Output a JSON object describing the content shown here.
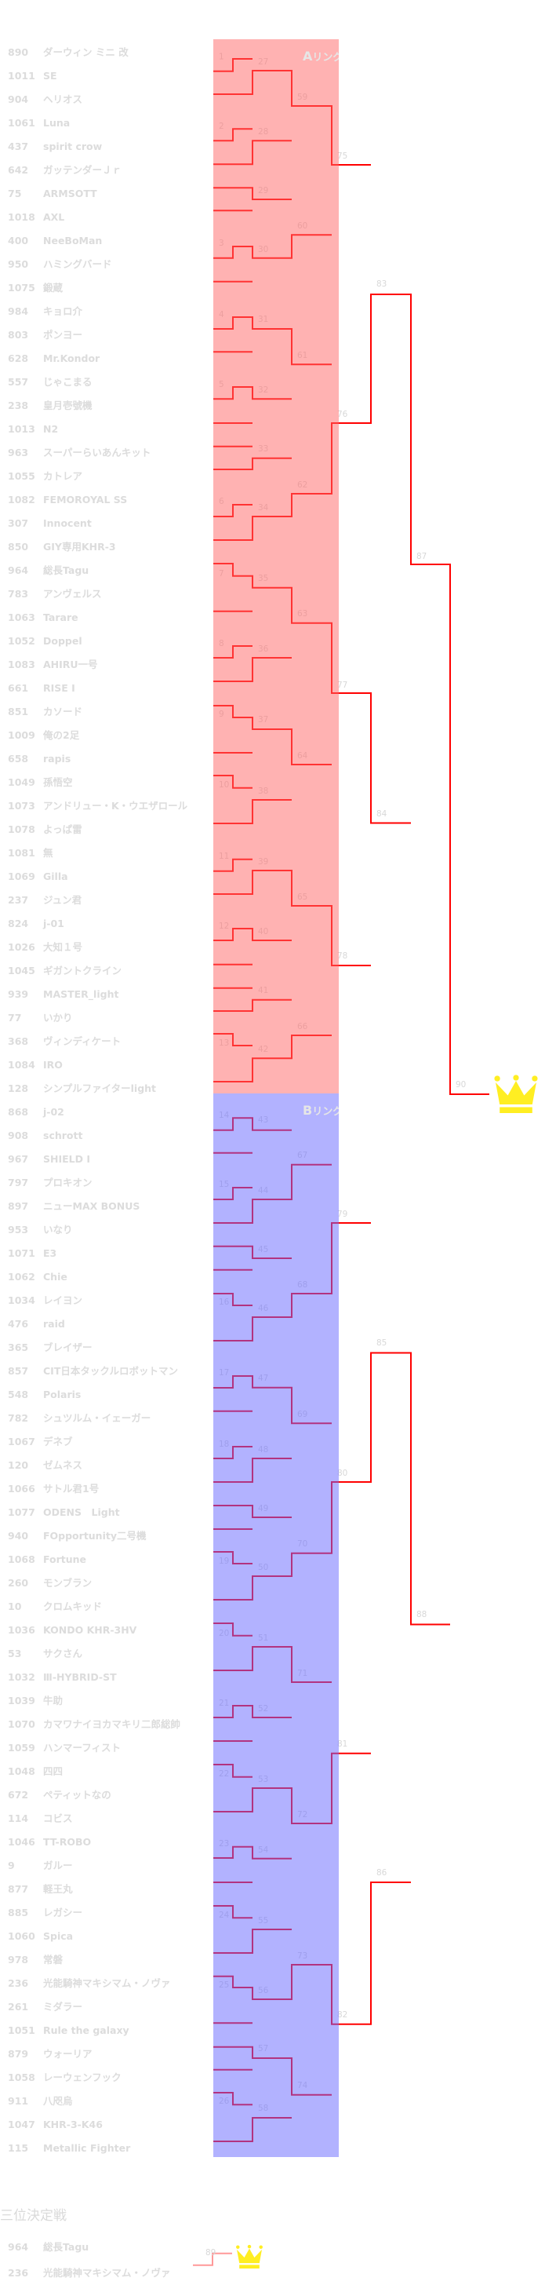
{
  "rings": [
    {
      "label_letter": "A",
      "label_rest": "リング",
      "entrants": [
        {
          "no": "890",
          "name": "ダーウィン ミニ 改"
        },
        {
          "no": "1011",
          "name": "SE"
        },
        {
          "no": "904",
          "name": "ヘリオス"
        },
        {
          "no": "1061",
          "name": "Luna"
        },
        {
          "no": "437",
          "name": "spirit crow"
        },
        {
          "no": "642",
          "name": "ガッテンダーＪｒ"
        },
        {
          "no": "75",
          "name": "ARMSOTT"
        },
        {
          "no": "1018",
          "name": "AXL"
        },
        {
          "no": "400",
          "name": "NeeBoMan"
        },
        {
          "no": "950",
          "name": "ハミングバード"
        },
        {
          "no": "1075",
          "name": "鍛蔵"
        },
        {
          "no": "984",
          "name": "キョロ介"
        },
        {
          "no": "803",
          "name": "ポンヨー"
        },
        {
          "no": "628",
          "name": "Mr.Kondor"
        },
        {
          "no": "557",
          "name": "じゃこまる"
        },
        {
          "no": "238",
          "name": "皇月壱號機"
        },
        {
          "no": "1013",
          "name": "N2"
        },
        {
          "no": "963",
          "name": "スーパーらいあんキット"
        },
        {
          "no": "1055",
          "name": "カトレア"
        },
        {
          "no": "1082",
          "name": "FEMOROYAL SS"
        },
        {
          "no": "307",
          "name": "Innocent"
        },
        {
          "no": "850",
          "name": "GIY専用KHR-3"
        },
        {
          "no": "964",
          "name": "総長Tagu"
        },
        {
          "no": "783",
          "name": "アンヴェルス"
        },
        {
          "no": "1063",
          "name": "Tarare"
        },
        {
          "no": "1052",
          "name": "Doppel"
        },
        {
          "no": "1083",
          "name": "AHIRU一号"
        },
        {
          "no": "661",
          "name": "RISE I"
        },
        {
          "no": "851",
          "name": "カソード"
        },
        {
          "no": "1009",
          "name": "俺の2足"
        },
        {
          "no": "658",
          "name": "rapis"
        },
        {
          "no": "1049",
          "name": "孫悟空"
        },
        {
          "no": "1073",
          "name": "アンドリュー・K・ウエザロール"
        },
        {
          "no": "1078",
          "name": "よっぱ雷"
        },
        {
          "no": "1081",
          "name": "無"
        },
        {
          "no": "1069",
          "name": "Gilla"
        },
        {
          "no": "237",
          "name": "ジュン君"
        },
        {
          "no": "824",
          "name": "j-01"
        },
        {
          "no": "1026",
          "name": "大知１号"
        },
        {
          "no": "1045",
          "name": "ギガントクライン"
        },
        {
          "no": "939",
          "name": "MASTER_light"
        },
        {
          "no": "77",
          "name": "いかり"
        },
        {
          "no": "368",
          "name": "ヴィンディケート"
        },
        {
          "no": "1084",
          "name": "IRO"
        },
        {
          "no": "128",
          "name": "シンプルファイターlight"
        }
      ]
    },
    {
      "label_letter": "B",
      "label_rest": "リング",
      "entrants": [
        {
          "no": "868",
          "name": "j-02"
        },
        {
          "no": "908",
          "name": "schrott"
        },
        {
          "no": "967",
          "name": "SHIELD Ⅰ"
        },
        {
          "no": "797",
          "name": "プロキオン"
        },
        {
          "no": "897",
          "name": "ニューMAX BONUS"
        },
        {
          "no": "953",
          "name": "いなり"
        },
        {
          "no": "1071",
          "name": "E3"
        },
        {
          "no": "1062",
          "name": "Chie"
        },
        {
          "no": "1034",
          "name": "レイヨン"
        },
        {
          "no": "476",
          "name": "raid"
        },
        {
          "no": "365",
          "name": "ブレイザー"
        },
        {
          "no": "857",
          "name": "CIT日本タックルロボットマン"
        },
        {
          "no": "548",
          "name": "Polaris"
        },
        {
          "no": "782",
          "name": "シュツルム・イェーガー"
        },
        {
          "no": "1067",
          "name": "デネブ"
        },
        {
          "no": "120",
          "name": "ゼムネス"
        },
        {
          "no": "1066",
          "name": "サトル君1号"
        },
        {
          "no": "1077",
          "name": "ODENS　Light"
        },
        {
          "no": "940",
          "name": "FOpportunity二号機"
        },
        {
          "no": "1068",
          "name": "Fortune"
        },
        {
          "no": "260",
          "name": "モンブラン"
        },
        {
          "no": "10",
          "name": "クロムキッド"
        },
        {
          "no": "1036",
          "name": "KONDO KHR-3HV"
        },
        {
          "no": "53",
          "name": "サクさん"
        },
        {
          "no": "1032",
          "name": "Ⅲ-HYBRID-ST"
        },
        {
          "no": "1039",
          "name": "牛助"
        },
        {
          "no": "1070",
          "name": "カマワナイヨカマキリ二郎総帥"
        },
        {
          "no": "1059",
          "name": "ハンマーフィスト"
        },
        {
          "no": "1048",
          "name": "四四"
        },
        {
          "no": "672",
          "name": "ペティットなの"
        },
        {
          "no": "114",
          "name": "コビス"
        },
        {
          "no": "1046",
          "name": "TT-ROBO"
        },
        {
          "no": "9",
          "name": "ガルー"
        },
        {
          "no": "877",
          "name": "軽王丸"
        },
        {
          "no": "885",
          "name": "レガシー"
        },
        {
          "no": "1060",
          "name": "Spica"
        },
        {
          "no": "978",
          "name": "常磐"
        },
        {
          "no": "236",
          "name": "光能騎神マキシマム・ノヴァ"
        },
        {
          "no": "261",
          "name": "ミダラー"
        },
        {
          "no": "1051",
          "name": "Rule the galaxy"
        },
        {
          "no": "879",
          "name": "ウォーリア"
        },
        {
          "no": "1058",
          "name": "レーウェンフック"
        },
        {
          "no": "911",
          "name": "八咫烏"
        },
        {
          "no": "1047",
          "name": "KHR-3-K46"
        },
        {
          "no": "115",
          "name": "Metallic Fighter"
        }
      ]
    }
  ],
  "match_numbers": [
    "1",
    "2",
    "3",
    "4",
    "5",
    "6",
    "7",
    "8",
    "9",
    "10",
    "11",
    "12",
    "13",
    "14",
    "15",
    "16",
    "17",
    "18",
    "19",
    "20",
    "21",
    "22",
    "23",
    "24",
    "25",
    "26",
    "27",
    "28",
    "29",
    "30",
    "31",
    "32",
    "33",
    "34",
    "35",
    "36",
    "37",
    "38",
    "39",
    "40",
    "41",
    "42",
    "43",
    "44",
    "45",
    "46",
    "47",
    "48",
    "49",
    "50",
    "51",
    "52",
    "53",
    "54",
    "55",
    "56",
    "57",
    "58",
    "59",
    "60",
    "61",
    "62",
    "63",
    "64",
    "65",
    "66",
    "67",
    "68",
    "69",
    "70",
    "71",
    "72",
    "73",
    "74",
    "75",
    "76",
    "77",
    "78",
    "79",
    "80",
    "81",
    "82",
    "83",
    "84",
    "85",
    "86",
    "87",
    "88",
    "89",
    "90"
  ],
  "third_place": {
    "title": "三位決定戦",
    "entrants": [
      {
        "no": "964",
        "name": "総長Tagu"
      },
      {
        "no": "236",
        "name": "光能騎神マキシマム・ノヴァ"
      }
    ]
  },
  "icons": {
    "champion": "crown-icon",
    "third_place": "crown-icon"
  },
  "colors": {
    "ring_a": "#ffb3b3",
    "ring_b": "#b3b3ff",
    "winner_line": "#ff0000",
    "crown": "#ffee22"
  }
}
